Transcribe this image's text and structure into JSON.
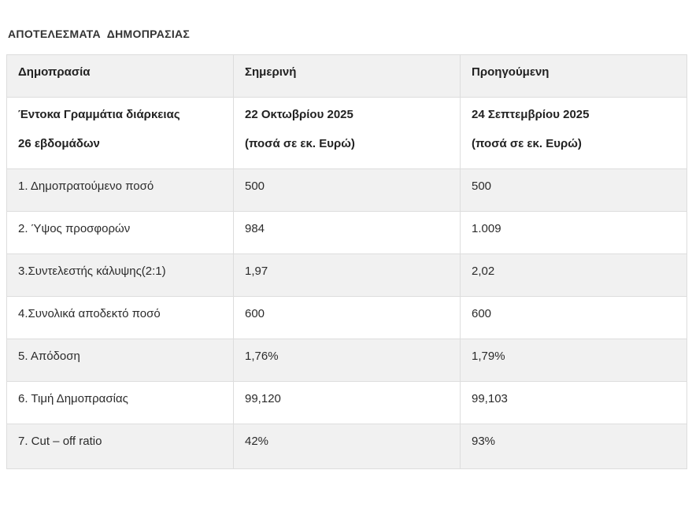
{
  "page": {
    "title": "ΑΠΟΤΕΛΕΣΜΑΤΑ  ΔΗΜΟΠΡΑΣΙΑΣ"
  },
  "table": {
    "headers": [
      "Δημοπρασία",
      "Σημερινή",
      "Προηγούμενη"
    ],
    "subheader": {
      "instrument_line1": "Έντοκα Γραμμάτια διάρκειας",
      "instrument_line2": "26 εβδομάδων",
      "current_date": "22 Οκτωβρίου 2025",
      "current_note": "(ποσά σε εκ. Ευρώ)",
      "previous_date": "24 Σεπτεμβρίου 2025",
      "previous_note": "(ποσά σε εκ. Ευρώ)"
    },
    "rows": [
      {
        "label": "1. Δημοπρατούμενο ποσό",
        "current": "500",
        "previous": "500"
      },
      {
        "label": "2. Ύψος προσφορών",
        "current": "984",
        "previous": "1.009"
      },
      {
        "label": "3.Συντελεστής κάλυψης(2:1)",
        "current": "1,97",
        "previous": "2,02"
      },
      {
        "label": "4.Συνολικά αποδεκτό ποσό",
        "current": "600",
        "previous": "600"
      },
      {
        "label": "5. Απόδοση",
        "current": "1,76%",
        "previous": "1,79%"
      },
      {
        "label": "6. Τιμή Δημοπρασίας",
        "current": "99,120",
        "previous": "99,103"
      },
      {
        "label": "7. Cut – off ratio",
        "current": "42%",
        "previous": "93%"
      }
    ],
    "colors": {
      "row_alt_bg": "#f1f1f1",
      "row_bg": "#ffffff",
      "border": "#dddddd",
      "text": "#2b2b2b"
    }
  }
}
